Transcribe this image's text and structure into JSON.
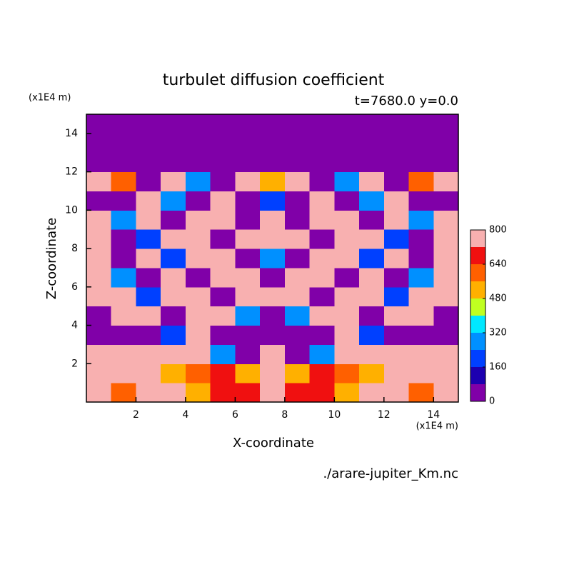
{
  "chart_data": {
    "type": "contour",
    "title": "turbulet diffusion coefficient",
    "subtitle": "t=7680.0 y=0.0",
    "xlabel": "X-coordinate",
    "ylabel": "Z-coordinate",
    "x_unit": "(x1E4 m)",
    "y_unit": "(x1E4 m)",
    "source": "./arare-jupiter_Km.nc",
    "xlim": [
      0,
      15
    ],
    "ylim": [
      0,
      15
    ],
    "xticks": [
      2,
      4,
      6,
      8,
      10,
      12,
      14
    ],
    "yticks": [
      2,
      4,
      6,
      8,
      10,
      12,
      14
    ],
    "x": [
      0.5,
      1.5,
      2.5,
      3.5,
      4.5,
      5.5,
      6.5,
      7.5,
      8.5,
      9.5,
      10.5,
      11.5,
      12.5,
      13.5,
      14.5
    ],
    "y": [
      0.5,
      1.5,
      2.5,
      3.5,
      4.5,
      5.5,
      6.5,
      7.5,
      8.5,
      9.5,
      10.5,
      11.5,
      12.5,
      13.5,
      14.5
    ],
    "z": [
      [
        760,
        600,
        760,
        760,
        500,
        700,
        680,
        760,
        680,
        700,
        500,
        760,
        760,
        600,
        760
      ],
      [
        760,
        760,
        760,
        500,
        600,
        640,
        480,
        760,
        480,
        640,
        600,
        500,
        760,
        760,
        760
      ],
      [
        760,
        760,
        760,
        760,
        760,
        300,
        40,
        760,
        40,
        300,
        760,
        760,
        760,
        760,
        760
      ],
      [
        40,
        40,
        40,
        200,
        760,
        40,
        40,
        40,
        40,
        40,
        760,
        200,
        40,
        40,
        40
      ],
      [
        40,
        760,
        760,
        40,
        760,
        760,
        300,
        40,
        300,
        760,
        760,
        40,
        760,
        760,
        40
      ],
      [
        760,
        760,
        200,
        760,
        760,
        40,
        760,
        760,
        760,
        40,
        760,
        760,
        200,
        760,
        760
      ],
      [
        760,
        300,
        40,
        760,
        40,
        760,
        760,
        40,
        760,
        760,
        40,
        760,
        40,
        300,
        760
      ],
      [
        760,
        40,
        760,
        200,
        760,
        760,
        40,
        300,
        40,
        760,
        760,
        200,
        760,
        40,
        760
      ],
      [
        760,
        40,
        200,
        760,
        760,
        40,
        760,
        760,
        760,
        40,
        760,
        760,
        200,
        40,
        760
      ],
      [
        760,
        300,
        760,
        40,
        760,
        760,
        40,
        760,
        40,
        760,
        760,
        40,
        760,
        300,
        760
      ],
      [
        40,
        40,
        760,
        300,
        40,
        760,
        40,
        200,
        40,
        760,
        40,
        300,
        760,
        40,
        40
      ],
      [
        760,
        600,
        40,
        760,
        300,
        40,
        760,
        500,
        760,
        40,
        300,
        760,
        40,
        600,
        760
      ],
      [
        40,
        40,
        40,
        40,
        40,
        40,
        40,
        40,
        40,
        40,
        40,
        40,
        40,
        40,
        40
      ],
      [
        40,
        40,
        40,
        40,
        40,
        40,
        40,
        40,
        40,
        40,
        40,
        40,
        40,
        40,
        40
      ],
      [
        40,
        40,
        40,
        40,
        40,
        40,
        40,
        40,
        40,
        40,
        40,
        40,
        40,
        40,
        40
      ]
    ],
    "levels": [
      0,
      80,
      160,
      240,
      320,
      400,
      480,
      560,
      640,
      720,
      800
    ],
    "colors": [
      "#8000a8",
      "#1c00b0",
      "#0040ff",
      "#0090ff",
      "#00e8ff",
      "#c0ff20",
      "#ffb000",
      "#ff6000",
      "#f01010",
      "#f8b0b0"
    ],
    "colorbar_ticks": [
      0,
      160,
      320,
      480,
      640,
      800
    ]
  }
}
